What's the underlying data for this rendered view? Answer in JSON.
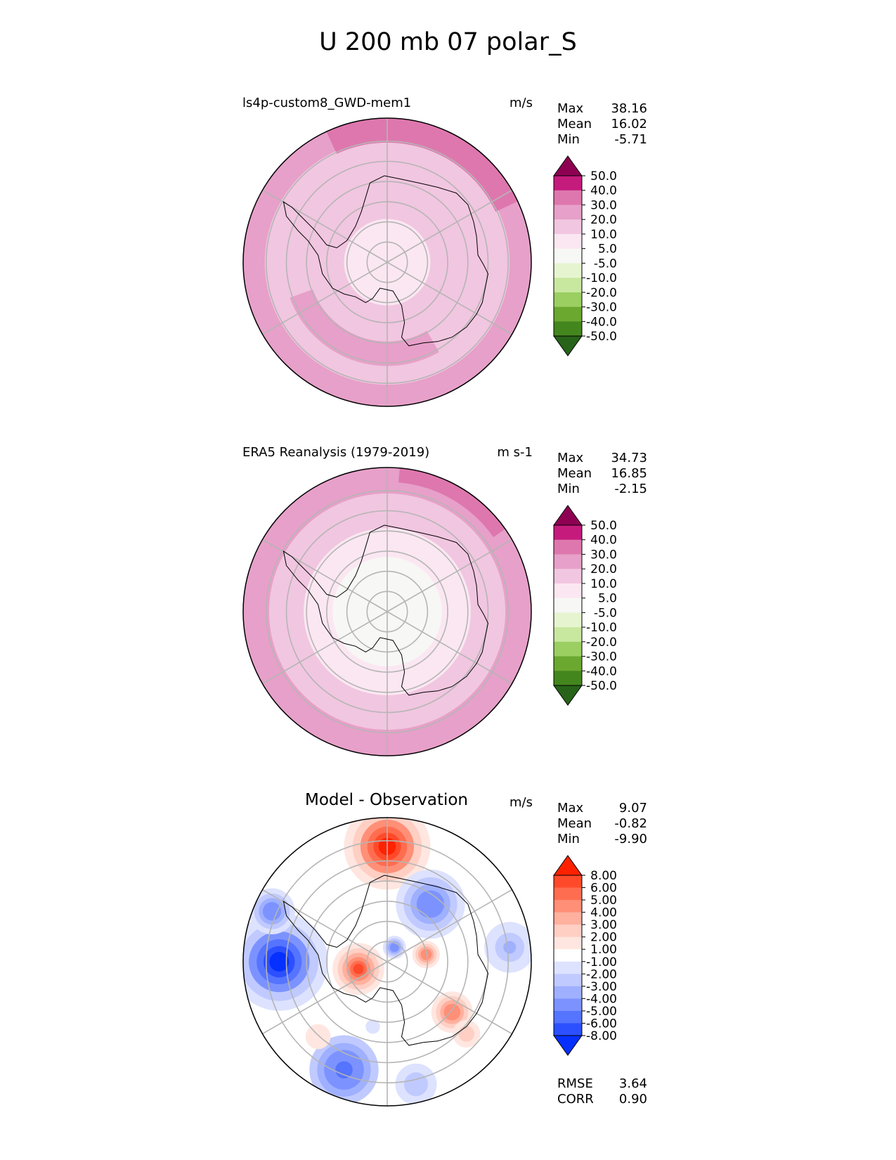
{
  "figure_title": "U 200 mb 07 polar_S",
  "panels": [
    {
      "id": "model",
      "title_left": "ls4p-custom8_GWD-mem1",
      "title_center": "",
      "units": "m/s",
      "stats": [
        {
          "label": "Max",
          "value": "38.16"
        },
        {
          "label": "Mean",
          "value": "16.02"
        },
        {
          "label": "Min",
          "value": "-5.71"
        }
      ],
      "footer_stats": [],
      "colorbar": {
        "labels": [
          "50.0",
          "40.0",
          "30.0",
          "20.0",
          "10.0",
          "5.0",
          "-5.0",
          "-10.0",
          "-20.0",
          "-30.0",
          "-40.0",
          "-50.0"
        ],
        "colors": [
          "#8e0152",
          "#c51b7d",
          "#de77ae",
          "#e7a0c9",
          "#f1c6e0",
          "#fbe7f1",
          "#f7f7f6",
          "#e6f5d0",
          "#c8e8a0",
          "#9bcf62",
          "#6aa830",
          "#44861e",
          "#276419"
        ]
      }
    },
    {
      "id": "obs",
      "title_left": "ERA5 Reanalysis (1979-2019)",
      "title_center": "",
      "units": "m s-1",
      "stats": [
        {
          "label": "Max",
          "value": "34.73"
        },
        {
          "label": "Mean",
          "value": "16.85"
        },
        {
          "label": "Min",
          "value": "-2.15"
        }
      ],
      "footer_stats": [],
      "colorbar": {
        "labels": [
          "50.0",
          "40.0",
          "30.0",
          "20.0",
          "10.0",
          "5.0",
          "-5.0",
          "-10.0",
          "-20.0",
          "-30.0",
          "-40.0",
          "-50.0"
        ],
        "colors": [
          "#8e0152",
          "#c51b7d",
          "#de77ae",
          "#e7a0c9",
          "#f1c6e0",
          "#fbe7f1",
          "#f7f7f6",
          "#e6f5d0",
          "#c8e8a0",
          "#9bcf62",
          "#6aa830",
          "#44861e",
          "#276419"
        ]
      }
    },
    {
      "id": "diff",
      "title_left": "",
      "title_center": "Model - Observation",
      "units": "m/s",
      "stats": [
        {
          "label": "Max",
          "value": "9.07"
        },
        {
          "label": "Mean",
          "value": "-0.82"
        },
        {
          "label": "Min",
          "value": "-9.90"
        }
      ],
      "footer_stats": [
        {
          "label": "RMSE",
          "value": "3.64"
        },
        {
          "label": "CORR",
          "value": "0.90"
        }
      ],
      "colorbar": {
        "labels": [
          "8.00",
          "6.00",
          "5.00",
          "4.00",
          "3.00",
          "2.00",
          "1.00",
          "-1.00",
          "-2.00",
          "-3.00",
          "-4.00",
          "-5.00",
          "-6.00",
          "-8.00"
        ],
        "colors": [
          "#ff2200",
          "#ff4a2a",
          "#ff6d50",
          "#ff8f77",
          "#ffb09e",
          "#ffcfc3",
          "#ffe6e0",
          "#ffffff",
          "#dde2ff",
          "#c0caff",
          "#9fb0ff",
          "#7c93ff",
          "#5574ff",
          "#2c50ff",
          "#0630ff"
        ]
      }
    }
  ],
  "chart_data": [
    {
      "type": "heatmap",
      "title": "ls4p-custom8_GWD-mem1",
      "projection": "south-polar stereographic",
      "variable": "U 200 mb",
      "units": "m/s",
      "levels": [
        -50,
        -40,
        -30,
        -20,
        -10,
        -5,
        5,
        10,
        20,
        30,
        40,
        50
      ],
      "bands": [
        {
          "rmin": 0.0,
          "rmax": 0.3,
          "value": 5
        },
        {
          "rmin": 0.3,
          "rmax": 0.55,
          "value": 10
        },
        {
          "rmin": 0.55,
          "rmax": 0.85,
          "value": 15
        },
        {
          "rmin": 0.85,
          "rmax": 1.0,
          "value": 25
        }
      ],
      "jets": [
        {
          "angle_deg": 70,
          "width_deg": 90,
          "rmin": 0.83,
          "value": 35
        },
        {
          "angle_deg": 250,
          "width_deg": 100,
          "rmin": 0.55,
          "rmax": 0.72,
          "value": 25
        }
      ],
      "stats": {
        "max": 38.16,
        "mean": 16.02,
        "min": -5.71
      }
    },
    {
      "type": "heatmap",
      "title": "ERA5 Reanalysis (1979-2019)",
      "projection": "south-polar stereographic",
      "variable": "U 200 mb",
      "units": "m s-1",
      "levels": [
        -50,
        -40,
        -30,
        -20,
        -10,
        -5,
        5,
        10,
        20,
        30,
        40,
        50
      ],
      "bands": [
        {
          "rmin": 0.0,
          "rmax": 0.38,
          "value": 0
        },
        {
          "rmin": 0.38,
          "rmax": 0.58,
          "value": 7
        },
        {
          "rmin": 0.58,
          "rmax": 0.82,
          "value": 15
        },
        {
          "rmin": 0.82,
          "rmax": 1.0,
          "value": 25
        }
      ],
      "jets": [
        {
          "angle_deg": 60,
          "width_deg": 50,
          "rmin": 0.9,
          "value": 35
        }
      ],
      "stats": {
        "max": 34.73,
        "mean": 16.85,
        "min": -2.15
      }
    },
    {
      "type": "heatmap",
      "title": "Model - Observation",
      "projection": "south-polar stereographic",
      "variable": "U 200 mb difference",
      "units": "m/s",
      "levels": [
        -8,
        -6,
        -5,
        -4,
        -3,
        -2,
        -1,
        1,
        2,
        3,
        4,
        5,
        6,
        8
      ],
      "anomalies": [
        {
          "dx": 0.0,
          "dy": -0.8,
          "r": 0.3,
          "value": 8.5
        },
        {
          "dx": -0.75,
          "dy": 0.0,
          "r": 0.34,
          "value": -8.5
        },
        {
          "dx": -0.8,
          "dy": -0.35,
          "r": 0.2,
          "value": -5
        },
        {
          "dx": -0.3,
          "dy": 0.75,
          "r": 0.3,
          "value": -6
        },
        {
          "dx": 0.3,
          "dy": -0.4,
          "r": 0.3,
          "value": -5
        },
        {
          "dx": 0.85,
          "dy": -0.1,
          "r": 0.22,
          "value": -3.5
        },
        {
          "dx": -0.2,
          "dy": 0.05,
          "r": 0.18,
          "value": 7
        },
        {
          "dx": 0.05,
          "dy": -0.1,
          "r": 0.1,
          "value": -5
        },
        {
          "dx": 0.27,
          "dy": -0.05,
          "r": 0.12,
          "value": 5
        },
        {
          "dx": 0.45,
          "dy": 0.35,
          "r": 0.18,
          "value": 5
        },
        {
          "dx": 0.55,
          "dy": 0.5,
          "r": 0.12,
          "value": 3
        },
        {
          "dx": -0.1,
          "dy": 0.45,
          "r": 0.08,
          "value": -2
        },
        {
          "dx": 0.2,
          "dy": 0.85,
          "r": 0.18,
          "value": -3
        },
        {
          "dx": -0.48,
          "dy": 0.52,
          "r": 0.14,
          "value": 2
        }
      ],
      "stats": {
        "max": 9.07,
        "mean": -0.82,
        "min": -9.9,
        "rmse": 3.64,
        "corr": 0.9
      }
    }
  ]
}
